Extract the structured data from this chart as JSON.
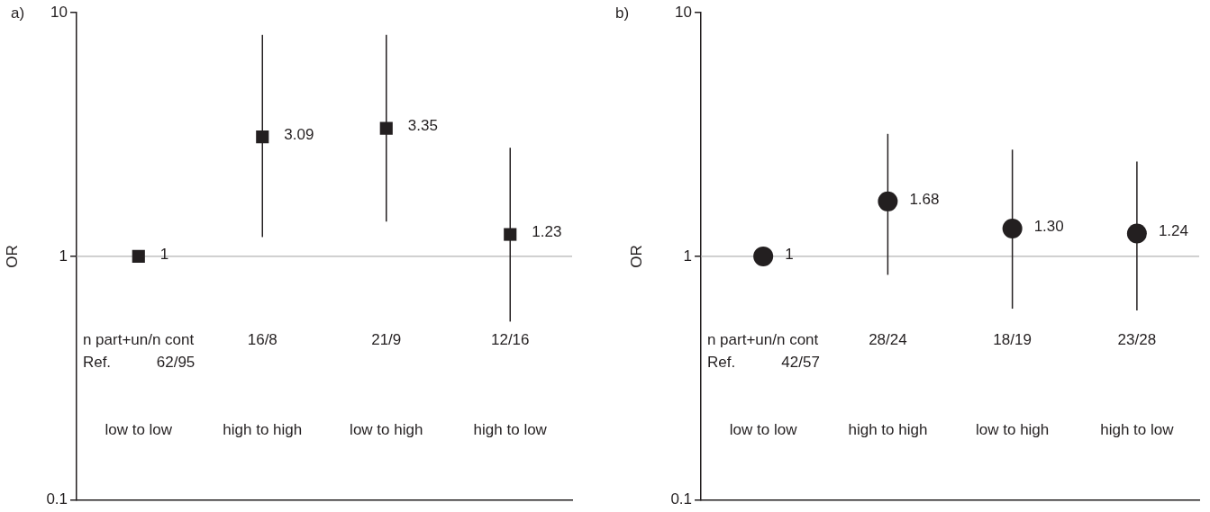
{
  "chart_data": [
    {
      "type": "scatter",
      "title": "a)",
      "ylabel": "OR",
      "categories": [
        "low to low",
        "high to high",
        "low to high",
        "high to low"
      ],
      "values": [
        1,
        3.09,
        3.35,
        1.23
      ],
      "errors": [
        null,
        [
          1.2,
          8.1
        ],
        [
          1.39,
          8.1
        ],
        [
          0.54,
          2.79
        ]
      ],
      "value_labels": [
        "1",
        "3.09",
        "3.35",
        "1.23"
      ],
      "color": "#231f20",
      "marker": "square",
      "log": true,
      "ylim": [
        0.1,
        10
      ],
      "yticks": [
        0.1,
        1,
        10
      ],
      "tick_labels": "y",
      "ref_lines": [
        {
          "axis": "y",
          "value": 1,
          "color": "#b3b3b3"
        }
      ],
      "annotations": [
        "n part+un/n cont",
        "Ref.",
        "62/95",
        "16/8",
        "21/9",
        "12/16"
      ]
    },
    {
      "type": "scatter",
      "title": "b)",
      "ylabel": "OR",
      "categories": [
        "low to low",
        "high to high",
        "low to high",
        "high to low"
      ],
      "values": [
        1,
        1.68,
        1.3,
        1.24
      ],
      "errors": [
        null,
        [
          0.84,
          3.18
        ],
        [
          0.61,
          2.74
        ],
        [
          0.6,
          2.45
        ]
      ],
      "value_labels": [
        "1",
        "1.68",
        "1.30",
        "1.24"
      ],
      "color": "#231f20",
      "marker": "circle",
      "log": true,
      "ylim": [
        0.1,
        10
      ],
      "yticks": [
        0.1,
        1,
        10
      ],
      "tick_labels": "y",
      "ref_lines": [
        {
          "axis": "y",
          "value": 1,
          "color": "#b3b3b3"
        }
      ],
      "annotations": [
        "n part+un/n cont",
        "Ref.",
        "42/57",
        "28/24",
        "18/19",
        "23/28"
      ]
    }
  ]
}
